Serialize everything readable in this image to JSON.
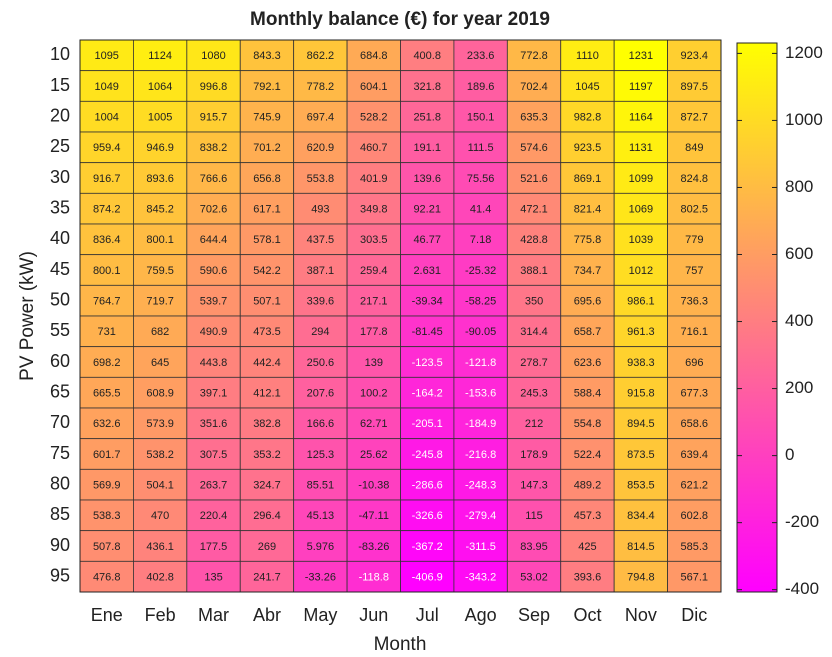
{
  "chart_data": {
    "type": "heatmap",
    "title": "Monthly balance (€) for year 2019",
    "x_label": "Month",
    "y_label": "PV Power (kW)",
    "x_categories": [
      "Ene",
      "Feb",
      "Mar",
      "Abr",
      "May",
      "Jun",
      "Jul",
      "Ago",
      "Sep",
      "Oct",
      "Nov",
      "Dic"
    ],
    "y_categories": [
      10,
      15,
      20,
      25,
      30,
      35,
      40,
      45,
      50,
      55,
      60,
      65,
      70,
      75,
      80,
      85,
      90,
      95
    ],
    "values": [
      [
        1095,
        1124,
        1080,
        843.3,
        862.2,
        684.8,
        400.8,
        233.6,
        772.8,
        1110,
        1231,
        923.4
      ],
      [
        1049,
        1064,
        996.8,
        792.1,
        778.2,
        604.1,
        321.8,
        189.6,
        702.4,
        1045,
        1197,
        897.5
      ],
      [
        1004,
        1005,
        915.7,
        745.9,
        697.4,
        528.2,
        251.8,
        150.1,
        635.3,
        982.8,
        1164,
        872.7
      ],
      [
        959.4,
        946.9,
        838.2,
        701.2,
        620.9,
        460.7,
        191.1,
        111.5,
        574.6,
        923.5,
        1131,
        849
      ],
      [
        916.7,
        893.6,
        766.6,
        656.8,
        553.8,
        401.9,
        139.6,
        75.56,
        521.6,
        869.1,
        1099,
        824.8
      ],
      [
        874.2,
        845.2,
        702.6,
        617.1,
        493,
        349.8,
        92.21,
        41.4,
        472.1,
        821.4,
        1069,
        802.5
      ],
      [
        836.4,
        800.1,
        644.4,
        578.1,
        437.5,
        303.5,
        46.77,
        7.18,
        428.8,
        775.8,
        1039,
        779
      ],
      [
        800.1,
        759.5,
        590.6,
        542.2,
        387.1,
        259.4,
        2.631,
        -25.32,
        388.1,
        734.7,
        1012,
        757
      ],
      [
        764.7,
        719.7,
        539.7,
        507.1,
        339.6,
        217.1,
        -39.34,
        -58.25,
        350,
        695.6,
        986.1,
        736.3
      ],
      [
        731,
        682,
        490.9,
        473.5,
        294,
        177.8,
        -81.45,
        -90.05,
        314.4,
        658.7,
        961.3,
        716.1
      ],
      [
        698.2,
        645,
        443.8,
        442.4,
        250.6,
        139,
        -123.5,
        -121.8,
        278.7,
        623.6,
        938.3,
        696
      ],
      [
        665.5,
        608.9,
        397.1,
        412.1,
        207.6,
        100.2,
        -164.2,
        -153.6,
        245.3,
        588.4,
        915.8,
        677.3
      ],
      [
        632.6,
        573.9,
        351.6,
        382.8,
        166.6,
        62.71,
        -205.1,
        -184.9,
        212,
        554.8,
        894.5,
        658.6
      ],
      [
        601.7,
        538.2,
        307.5,
        353.2,
        125.3,
        25.62,
        -245.8,
        -216.8,
        178.9,
        522.4,
        873.5,
        639.4
      ],
      [
        569.9,
        504.1,
        263.7,
        324.7,
        85.51,
        -10.38,
        -286.6,
        -248.3,
        147.3,
        489.2,
        853.5,
        621.2
      ],
      [
        538.3,
        470,
        220.4,
        296.4,
        45.13,
        -47.11,
        -326.6,
        -279.4,
        115,
        457.3,
        834.4,
        602.8
      ],
      [
        507.8,
        436.1,
        177.5,
        269,
        5.976,
        -83.26,
        -367.2,
        -311.5,
        83.95,
        425,
        814.5,
        585.3
      ],
      [
        476.8,
        402.8,
        135,
        241.7,
        -33.26,
        -118.8,
        -406.9,
        -343.2,
        53.02,
        393.6,
        794.8,
        567.1
      ]
    ],
    "zlim": [
      -406.9,
      1231
    ],
    "zticks": [
      -400,
      -200,
      0,
      200,
      400,
      600,
      800,
      1000,
      1200
    ],
    "colormap": [
      "#ff00ff",
      "#ffff00"
    ]
  }
}
